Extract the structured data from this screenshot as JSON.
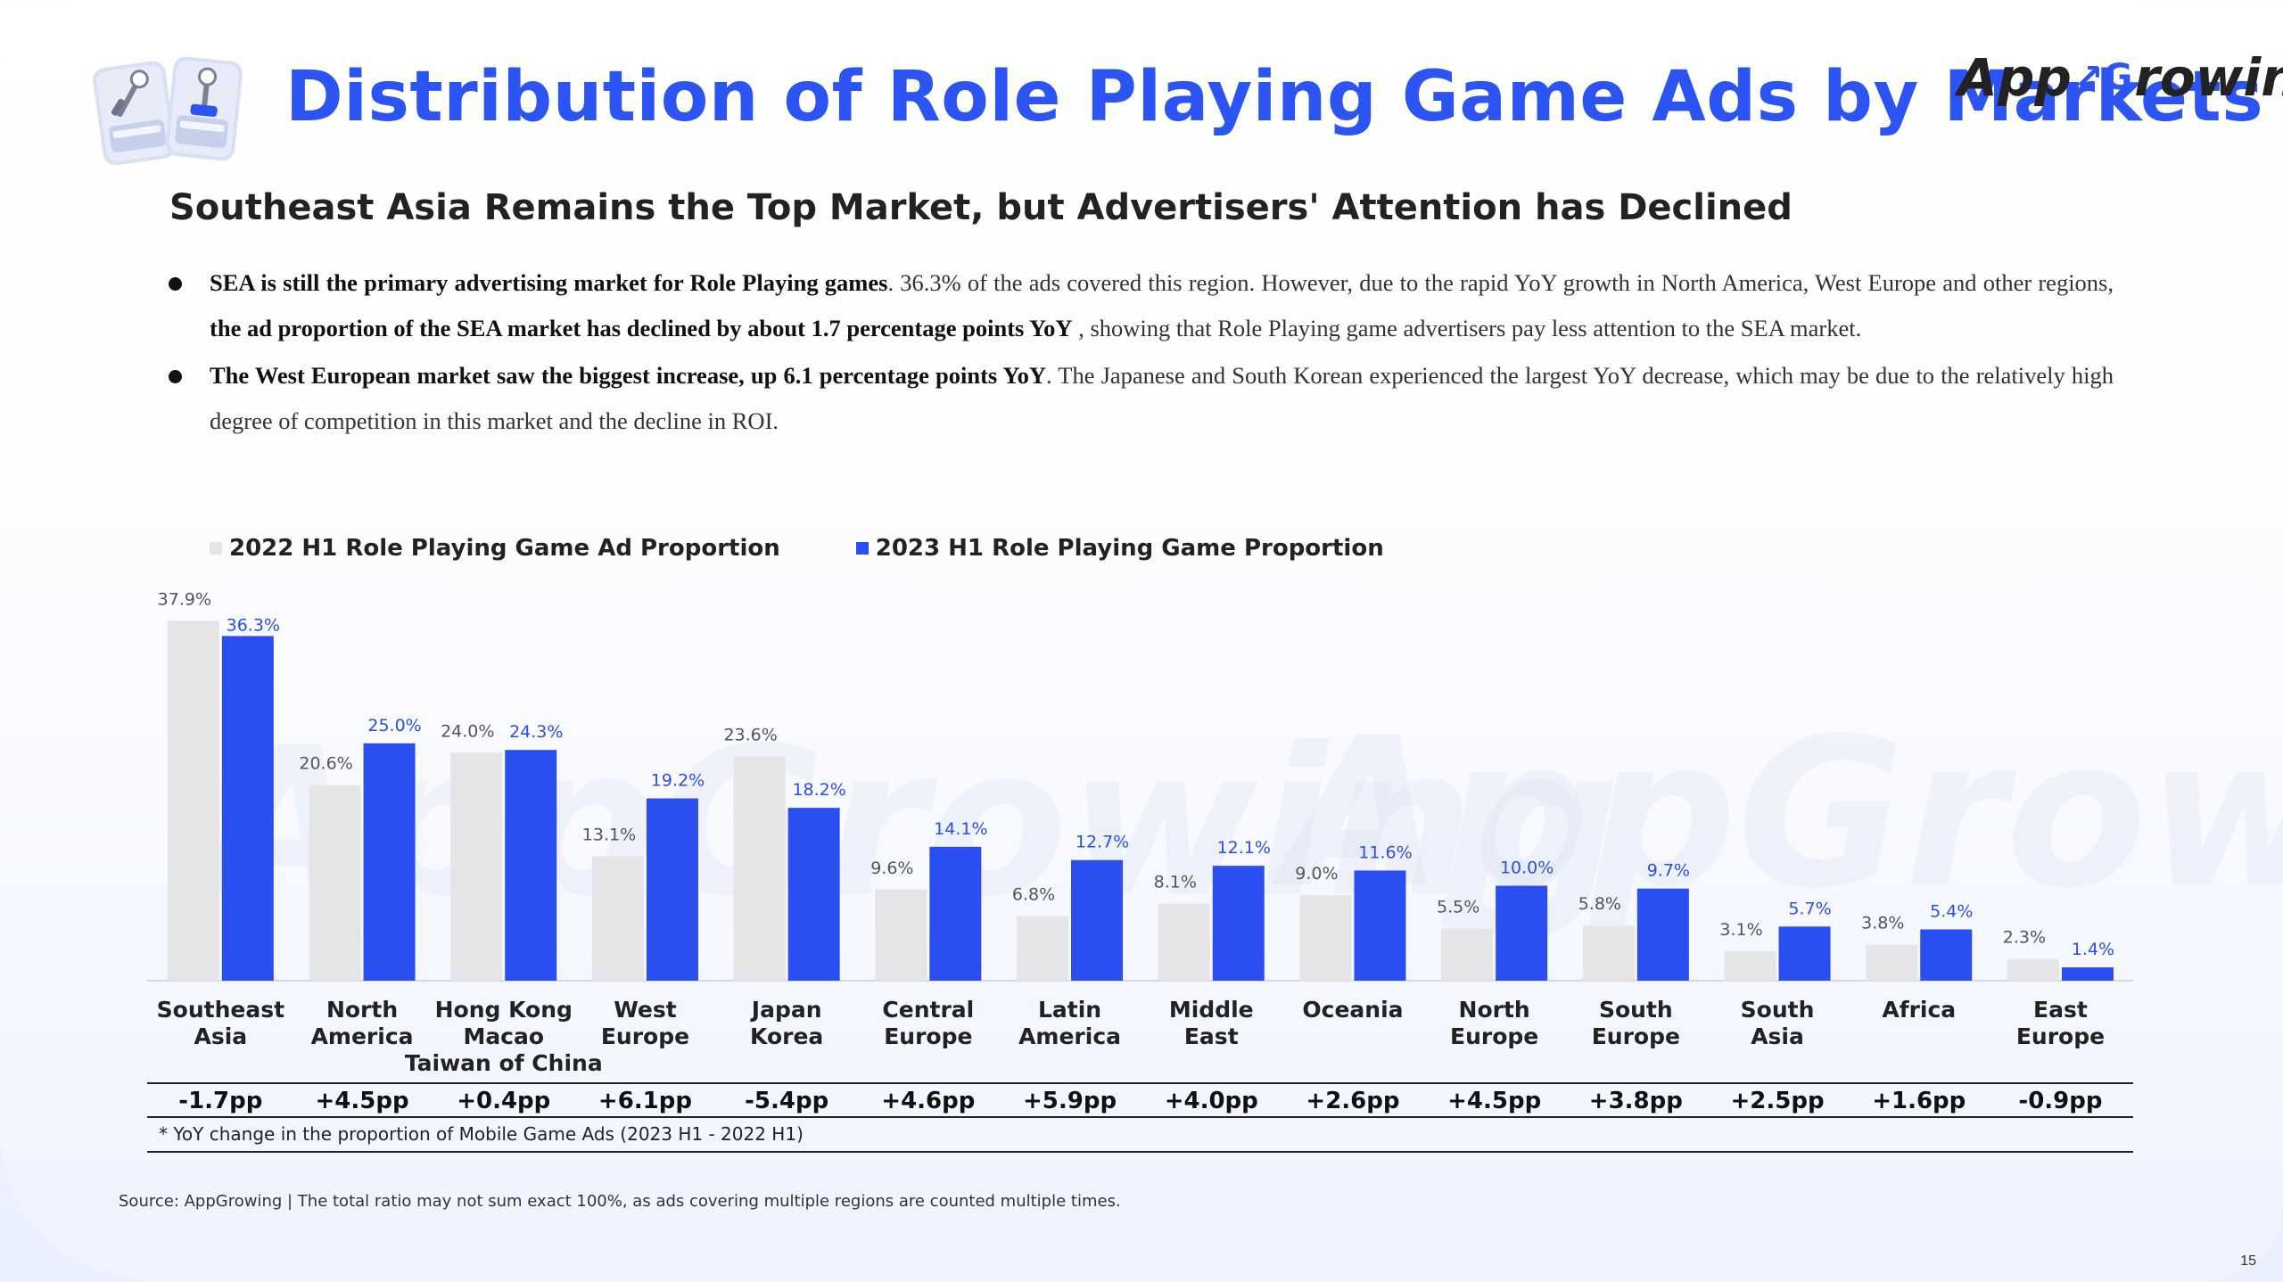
{
  "title": "Distribution of Role Playing Game Ads by Markets",
  "logo": {
    "part1": "App",
    "part2": "rowing"
  },
  "subtitle": "Southeast Asia Remains the Top Market, but Advertisers' Attention has Declined",
  "bullets": [
    {
      "b1": "SEA is still the primary advertising market for Role Playing games",
      "t1": ". 36.3% of the ads covered this region. However, due to the rapid YoY growth in North America, West Europe and other regions, ",
      "b2": "the ad proportion of the SEA market has declined by about 1.7 percentage points YoY",
      "t2": " , showing that Role Playing game advertisers pay less attention to the SEA market."
    },
    {
      "b1": "The West European market saw the biggest increase, up 6.1 percentage points YoY",
      "t1": ". The Japanese and South Korean experienced the largest YoY decrease, which may be due to the relatively high degree of competition in this market and the decline in ROI.",
      "b2": "",
      "t2": ""
    }
  ],
  "chart_data": {
    "type": "bar",
    "categories": [
      [
        "Southeast",
        "Asia"
      ],
      [
        "North",
        "America"
      ],
      [
        "Hong Kong",
        "Macao",
        "Taiwan of China"
      ],
      [
        "West",
        "Europe"
      ],
      [
        "Japan",
        "Korea"
      ],
      [
        "Central",
        "Europe"
      ],
      [
        "Latin",
        "America"
      ],
      [
        "Middle",
        "East"
      ],
      [
        "Oceania"
      ],
      [
        "North",
        "Europe"
      ],
      [
        "South",
        "Europe"
      ],
      [
        "South",
        "Asia"
      ],
      [
        "Africa"
      ],
      [
        "East",
        "Europe"
      ]
    ],
    "series": [
      {
        "name": "2022 H1 Role Playing Game Ad Proportion",
        "color": "#e5e5e8",
        "label_color": "#555555",
        "values": [
          37.9,
          20.6,
          24.0,
          13.1,
          23.6,
          9.6,
          6.8,
          8.1,
          9.0,
          5.5,
          5.8,
          3.1,
          3.8,
          2.3
        ],
        "labels": [
          "37.9%",
          "20.6%",
          "24.0%",
          "13.1%",
          "23.6%",
          "9.6%",
          "6.8%",
          "8.1%",
          "9.0%",
          "5.5%",
          "5.8%",
          "3.1%",
          "3.8%",
          "2.3%"
        ]
      },
      {
        "name": "2023 H1 Role Playing Game Proportion",
        "color": "#2b4ef0",
        "label_color": "#2b4ef0",
        "values": [
          36.3,
          25.0,
          24.3,
          19.2,
          18.2,
          14.1,
          12.7,
          12.1,
          11.6,
          10.0,
          9.7,
          5.7,
          5.4,
          1.4
        ],
        "labels": [
          "36.3%",
          "25.0%",
          "24.3%",
          "19.2%",
          "18.2%",
          "14.1%",
          "12.7%",
          "12.1%",
          "11.6%",
          "10.0%",
          "9.7%",
          "5.7%",
          "5.4%",
          "1.4%"
        ]
      }
    ],
    "yoy_changes": [
      "-1.7pp",
      "+4.5pp",
      "+0.4pp",
      "+6.1pp",
      "-5.4pp",
      "+4.6pp",
      "+5.9pp",
      "+4.0pp",
      "+2.6pp",
      "+4.5pp",
      "+3.8pp",
      "+2.5pp",
      "+1.6pp",
      "-0.9pp"
    ],
    "yoy_note": "* YoY change in the proportion of Mobile Game Ads (2023 H1 - 2022 H1)",
    "ylim": [
      0,
      40
    ],
    "legend_position": "top-left",
    "grid": false
  },
  "source": "Source: AppGrowing | The total ratio may not sum exact 100%, as ads covering multiple regions are counted multiple times.",
  "page_number": "15",
  "watermark": "AppGrowing"
}
